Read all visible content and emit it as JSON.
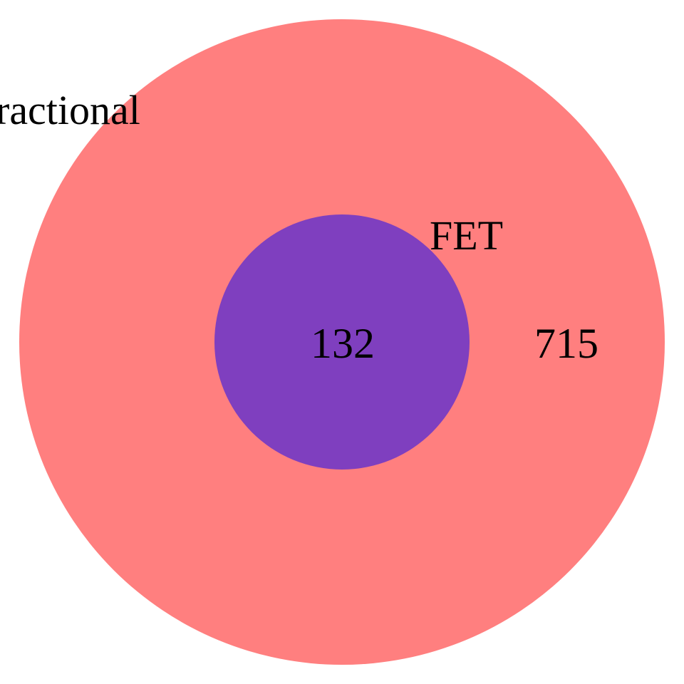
{
  "sets": [
    {
      "id": "outer",
      "label": "ractional",
      "color": "#ff7f7f"
    },
    {
      "id": "inner",
      "label": "FET",
      "color": "#7f3fbf"
    }
  ],
  "regions": [
    {
      "id": "outer-only",
      "sets": [
        "outer"
      ],
      "count": "715"
    },
    {
      "id": "intersection",
      "sets": [
        "outer",
        "inner"
      ],
      "count": "132"
    }
  ]
}
